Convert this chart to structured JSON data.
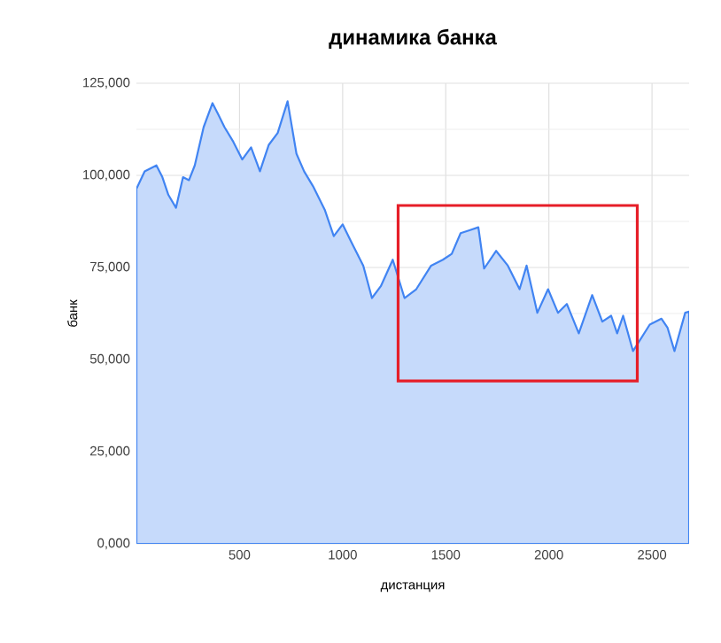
{
  "chart_data": {
    "type": "area",
    "title": "динамика банка",
    "xlabel": "дистанция",
    "ylabel": "банк",
    "grid": true,
    "xlim": [
      0,
      2680
    ],
    "ylim": [
      0,
      125000
    ],
    "xticks": [
      500,
      1000,
      1500,
      2000,
      2500
    ],
    "yticks": [
      {
        "value": 0,
        "label": "0,000"
      },
      {
        "value": 25000,
        "label": "25,000"
      },
      {
        "value": 50000,
        "label": "50,000"
      },
      {
        "value": 75000,
        "label": "75,000"
      },
      {
        "value": 100000,
        "label": "100,000"
      },
      {
        "value": 125000,
        "label": "125,000"
      }
    ],
    "x": [
      0,
      40,
      97,
      126,
      155,
      192,
      226,
      255,
      283,
      326,
      369,
      398,
      427,
      470,
      513,
      556,
      599,
      642,
      685,
      733,
      776,
      813,
      856,
      913,
      957,
      1000,
      1042,
      1100,
      1142,
      1185,
      1243,
      1300,
      1357,
      1429,
      1486,
      1529,
      1572,
      1615,
      1658,
      1686,
      1744,
      1801,
      1858,
      1892,
      1944,
      1996,
      2044,
      2087,
      2145,
      2210,
      2259,
      2302,
      2331,
      2360,
      2408,
      2489,
      2546,
      2575,
      2609,
      2661,
      2680
    ],
    "series": [
      {
        "color": "#c6dafb",
        "values": [
          96300,
          101100,
          102700,
          99500,
          94700,
          91200,
          99500,
          98700,
          102700,
          113100,
          119600,
          116400,
          113100,
          109100,
          104300,
          107600,
          101100,
          108300,
          111500,
          120100,
          105900,
          101100,
          97100,
          90700,
          83500,
          86700,
          81900,
          75500,
          66700,
          69900,
          77100,
          66700,
          69100,
          75500,
          77100,
          78700,
          84300,
          85100,
          85900,
          74700,
          79500,
          75500,
          69100,
          75500,
          62700,
          69100,
          62700,
          65100,
          57100,
          67500,
          60300,
          61900,
          57100,
          61900,
          52300,
          59500,
          61100,
          58700,
          52300,
          62700,
          63000
        ]
      }
    ]
  }
}
